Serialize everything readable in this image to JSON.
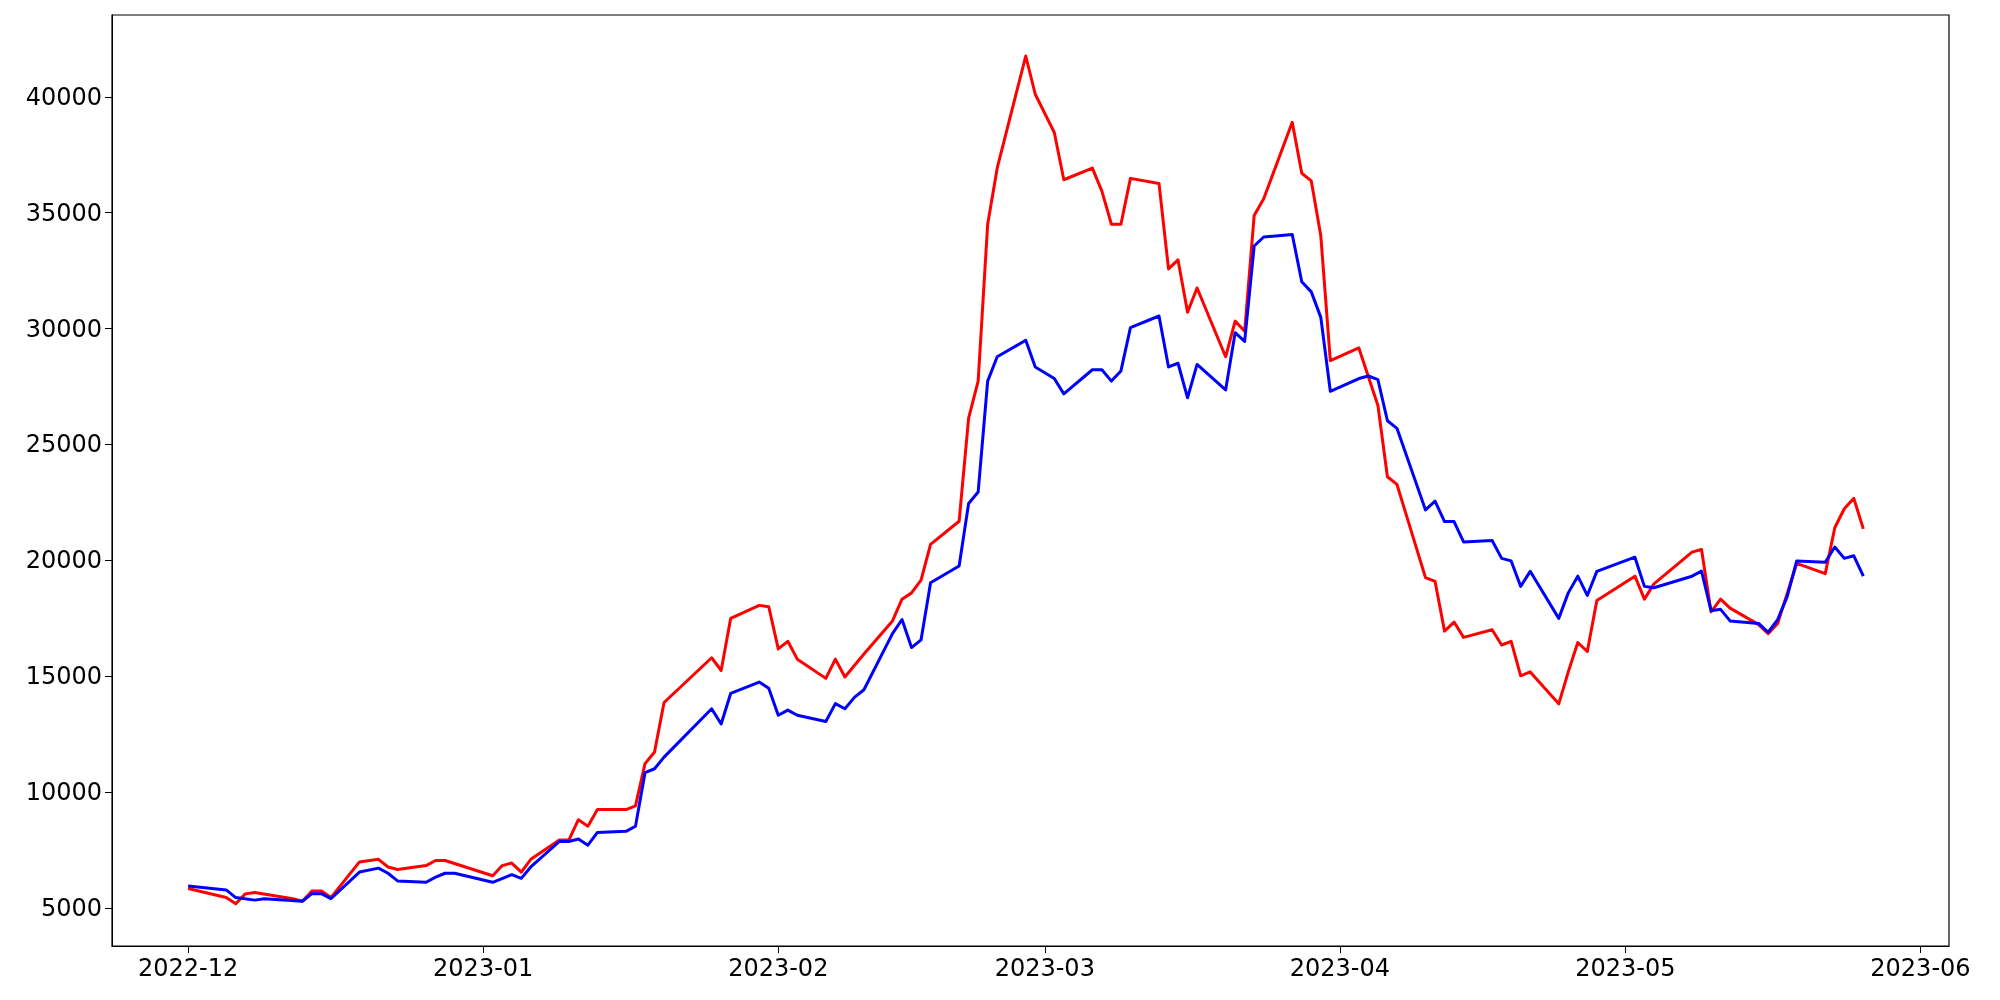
{
  "chart_data": {
    "type": "line",
    "xlim": [
      "2022-11-23",
      "2023-06-04"
    ],
    "xticks": [
      "2022-12",
      "2023-01",
      "2023-02",
      "2023-03",
      "2023-04",
      "2023-05",
      "2023-06"
    ],
    "ylim": [
      3350,
      43530
    ],
    "yticks": [
      5000,
      10000,
      15000,
      20000,
      25000,
      30000,
      35000,
      40000
    ],
    "grid": false,
    "marker": "none",
    "line_style": "solid",
    "series": [
      {
        "color": "#ff0000",
        "x": [
          "2022-12-01",
          "2022-12-05",
          "2022-12-06",
          "2022-12-07",
          "2022-12-08",
          "2022-12-12",
          "2022-12-13",
          "2022-12-14",
          "2022-12-15",
          "2022-12-16",
          "2022-12-19",
          "2022-12-21",
          "2022-12-22",
          "2022-12-23",
          "2022-12-26",
          "2022-12-27",
          "2022-12-28",
          "2023-01-02",
          "2023-01-03",
          "2023-01-04",
          "2023-01-05",
          "2023-01-06",
          "2023-01-09",
          "2023-01-10",
          "2023-01-11",
          "2023-01-12",
          "2023-01-13",
          "2023-01-16",
          "2023-01-17",
          "2023-01-18",
          "2023-01-19",
          "2023-01-20",
          "2023-01-25",
          "2023-01-26",
          "2023-01-27",
          "2023-01-30",
          "2023-01-31",
          "2023-02-01",
          "2023-02-02",
          "2023-02-03",
          "2023-02-06",
          "2023-02-07",
          "2023-02-08",
          "2023-02-10",
          "2023-02-13",
          "2023-02-14",
          "2023-02-15",
          "2023-02-16",
          "2023-02-17",
          "2023-02-20",
          "2023-02-21",
          "2023-02-22",
          "2023-02-23",
          "2023-02-24",
          "2023-02-27",
          "2023-02-28",
          "2023-03-02",
          "2023-03-03",
          "2023-03-06",
          "2023-03-07",
          "2023-03-08",
          "2023-03-09",
          "2023-03-10",
          "2023-03-13",
          "2023-03-14",
          "2023-03-15",
          "2023-03-16",
          "2023-03-17",
          "2023-03-20",
          "2023-03-21",
          "2023-03-22",
          "2023-03-23",
          "2023-03-24",
          "2023-03-27",
          "2023-03-28",
          "2023-03-29",
          "2023-03-30",
          "2023-03-31",
          "2023-04-03",
          "2023-04-05",
          "2023-04-06",
          "2023-04-07",
          "2023-04-10",
          "2023-04-11",
          "2023-04-12",
          "2023-04-13",
          "2023-04-14",
          "2023-04-17",
          "2023-04-18",
          "2023-04-19",
          "2023-04-20",
          "2023-04-21",
          "2023-04-24",
          "2023-04-25",
          "2023-04-26",
          "2023-04-27",
          "2023-04-28",
          "2023-05-02",
          "2023-05-03",
          "2023-05-04",
          "2023-05-08",
          "2023-05-09",
          "2023-05-10",
          "2023-05-11",
          "2023-05-12",
          "2023-05-15",
          "2023-05-16",
          "2023-05-17",
          "2023-05-19",
          "2023-05-22",
          "2023-05-23",
          "2023-05-24",
          "2023-05-25",
          "2023-05-26"
        ],
        "values": [
          5830,
          5440,
          5170,
          5600,
          5660,
          5390,
          5280,
          5720,
          5720,
          5440,
          6980,
          7090,
          6760,
          6650,
          6820,
          7040,
          7040,
          6380,
          6820,
          6930,
          6540,
          7090,
          7920,
          7920,
          8800,
          8520,
          9240,
          9240,
          9400,
          11220,
          11720,
          13860,
          15790,
          15240,
          17490,
          18050,
          17990,
          16170,
          16500,
          15730,
          14900,
          15730,
          14960,
          15950,
          17380,
          18320,
          18590,
          19140,
          20680,
          21680,
          26130,
          27730,
          34500,
          36920,
          41760,
          40110,
          38460,
          36420,
          36920,
          35930,
          34500,
          34500,
          36480,
          36260,
          32570,
          32960,
          30700,
          31750,
          28780,
          30320,
          29880,
          34880,
          35600,
          38900,
          36700,
          36370,
          34000,
          28610,
          29160,
          26680,
          23600,
          23270,
          19250,
          19090,
          16940,
          17330,
          16670,
          17000,
          16340,
          16500,
          15010,
          15180,
          13800,
          15180,
          16450,
          16060,
          18260,
          19310,
          18320,
          18980,
          20350,
          20460,
          17770,
          18320,
          17930,
          17220,
          16830,
          17270,
          19860,
          19420,
          21400,
          22220,
          22670,
          21350
        ]
      },
      {
        "color": "#0000ff",
        "x": [
          "2022-12-01",
          "2022-12-05",
          "2022-12-06",
          "2022-12-08",
          "2022-12-09",
          "2022-12-13",
          "2022-12-14",
          "2022-12-15",
          "2022-12-16",
          "2022-12-19",
          "2022-12-21",
          "2022-12-22",
          "2022-12-23",
          "2022-12-26",
          "2022-12-27",
          "2022-12-28",
          "2022-12-29",
          "2023-01-02",
          "2023-01-04",
          "2023-01-05",
          "2023-01-06",
          "2023-01-09",
          "2023-01-10",
          "2023-01-11",
          "2023-01-12",
          "2023-01-13",
          "2023-01-16",
          "2023-01-17",
          "2023-01-18",
          "2023-01-19",
          "2023-01-20",
          "2023-01-25",
          "2023-01-26",
          "2023-01-27",
          "2023-01-30",
          "2023-01-31",
          "2023-02-01",
          "2023-02-02",
          "2023-02-03",
          "2023-02-06",
          "2023-02-07",
          "2023-02-08",
          "2023-02-09",
          "2023-02-10",
          "2023-02-13",
          "2023-02-14",
          "2023-02-15",
          "2023-02-16",
          "2023-02-17",
          "2023-02-20",
          "2023-02-21",
          "2023-02-22",
          "2023-02-23",
          "2023-02-24",
          "2023-02-27",
          "2023-02-28",
          "2023-03-02",
          "2023-03-03",
          "2023-03-06",
          "2023-03-07",
          "2023-03-08",
          "2023-03-09",
          "2023-03-10",
          "2023-03-13",
          "2023-03-14",
          "2023-03-15",
          "2023-03-16",
          "2023-03-17",
          "2023-03-20",
          "2023-03-21",
          "2023-03-22",
          "2023-03-23",
          "2023-03-24",
          "2023-03-27",
          "2023-03-28",
          "2023-03-29",
          "2023-03-30",
          "2023-03-31",
          "2023-04-03",
          "2023-04-04",
          "2023-04-05",
          "2023-04-06",
          "2023-04-07",
          "2023-04-10",
          "2023-04-11",
          "2023-04-12",
          "2023-04-13",
          "2023-04-14",
          "2023-04-17",
          "2023-04-18",
          "2023-04-19",
          "2023-04-20",
          "2023-04-21",
          "2023-04-24",
          "2023-04-25",
          "2023-04-26",
          "2023-04-27",
          "2023-04-28",
          "2023-05-02",
          "2023-05-03",
          "2023-05-04",
          "2023-05-08",
          "2023-05-09",
          "2023-05-10",
          "2023-05-11",
          "2023-05-12",
          "2023-05-15",
          "2023-05-16",
          "2023-05-17",
          "2023-05-18",
          "2023-05-19",
          "2023-05-22",
          "2023-05-23",
          "2023-05-24",
          "2023-05-25",
          "2023-05-26"
        ],
        "values": [
          5940,
          5770,
          5440,
          5330,
          5390,
          5280,
          5610,
          5610,
          5390,
          6540,
          6710,
          6490,
          6160,
          6100,
          6320,
          6490,
          6490,
          6100,
          6430,
          6270,
          6760,
          7860,
          7860,
          7970,
          7700,
          8250,
          8300,
          8520,
          10830,
          11000,
          11500,
          13590,
          12930,
          14250,
          14740,
          14470,
          13310,
          13530,
          13310,
          13040,
          13810,
          13590,
          14080,
          14410,
          16830,
          17440,
          16230,
          16560,
          19030,
          19750,
          22450,
          22940,
          27730,
          28780,
          29490,
          28340,
          27840,
          27180,
          28220,
          28220,
          27730,
          28170,
          30040,
          30540,
          28340,
          28500,
          27010,
          28450,
          27350,
          29820,
          29440,
          33560,
          33950,
          34060,
          32020,
          31580,
          30480,
          27290,
          27840,
          27950,
          27790,
          26020,
          25690,
          22170,
          22550,
          21670,
          21670,
          20790,
          20850,
          20080,
          19970,
          18870,
          19520,
          17490,
          18590,
          19310,
          18480,
          19520,
          20130,
          18870,
          18810,
          19310,
          19530,
          17820,
          17880,
          17380,
          17270,
          16890,
          17440,
          18430,
          19970,
          19910,
          20570,
          20080,
          20190,
          19310
        ]
      }
    ]
  }
}
